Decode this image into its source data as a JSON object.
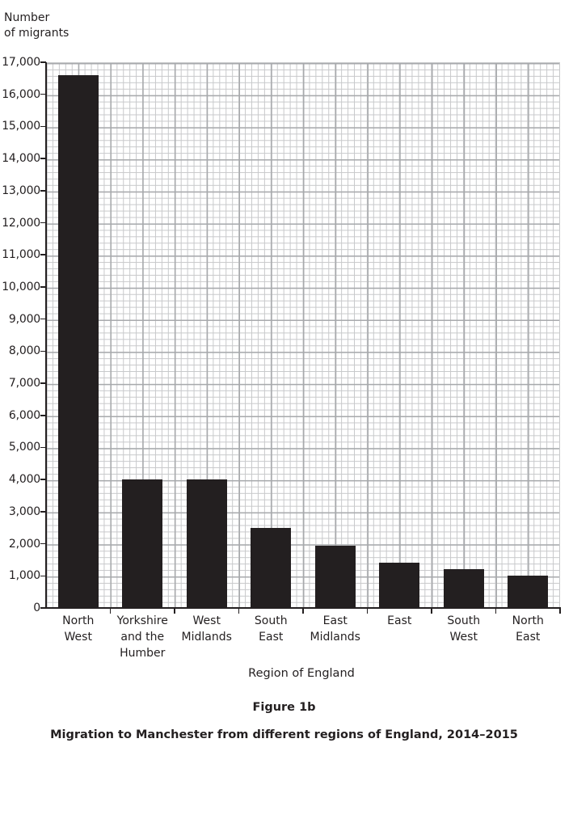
{
  "chart_data": {
    "type": "bar",
    "title": "Migration to Manchester from different regions of England, 2014–2015",
    "figure_label": "Figure 1b",
    "xlabel": "Region of England",
    "ylabel": [
      "Number",
      "of migrants"
    ],
    "ylim": [
      0,
      17000
    ],
    "yticks": [
      "0",
      "1,000",
      "2,000",
      "3,000",
      "4,000",
      "5,000",
      "6,000",
      "7,000",
      "8,000",
      "9,000",
      "10,000",
      "11,000",
      "12,000",
      "13,000",
      "14,000",
      "15,000",
      "16,000",
      "17,000"
    ],
    "grid": true,
    "categories": [
      [
        "North",
        "West"
      ],
      [
        "Yorkshire",
        "and the",
        "Humber"
      ],
      [
        "West",
        "Midlands"
      ],
      [
        "South",
        "East"
      ],
      [
        "East",
        "Midlands"
      ],
      [
        "East"
      ],
      [
        "South",
        "West"
      ],
      [
        "North",
        "East"
      ]
    ],
    "category_names": [
      "North West",
      "Yorkshire and the Humber",
      "West Midlands",
      "South East",
      "East Midlands",
      "East",
      "South West",
      "North East"
    ],
    "values": [
      16600,
      4000,
      4000,
      2500,
      1950,
      1400,
      1200,
      1000
    ],
    "bar_color": "#231f20"
  }
}
